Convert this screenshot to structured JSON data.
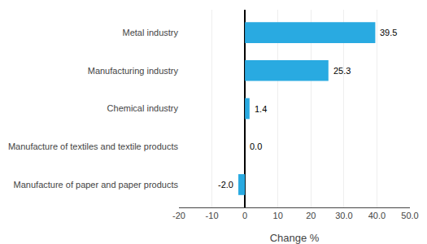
{
  "chart_data": {
    "type": "bar",
    "orientation": "horizontal",
    "categories": [
      "Manufacture of paper and paper products",
      "Manufacture of textiles and textile products",
      "Chemical industry",
      "Manufacturing industry",
      "Metal industry"
    ],
    "values": [
      -2.0,
      0.0,
      1.4,
      25.3,
      39.5
    ],
    "value_labels": [
      "-2.0",
      "0.0",
      "1.4",
      "25.3",
      "39.5"
    ],
    "data_labels": true,
    "color": "#29aae1",
    "xlabel": "Change %",
    "xlim": [
      -20,
      50
    ],
    "xticks": [
      -20,
      -10,
      0,
      10,
      20,
      {
        "value": 30,
        "label": "30.0"
      },
      {
        "value": 40,
        "label": "40.0"
      },
      {
        "value": 50,
        "label": "50.0"
      }
    ],
    "grid": true
  }
}
